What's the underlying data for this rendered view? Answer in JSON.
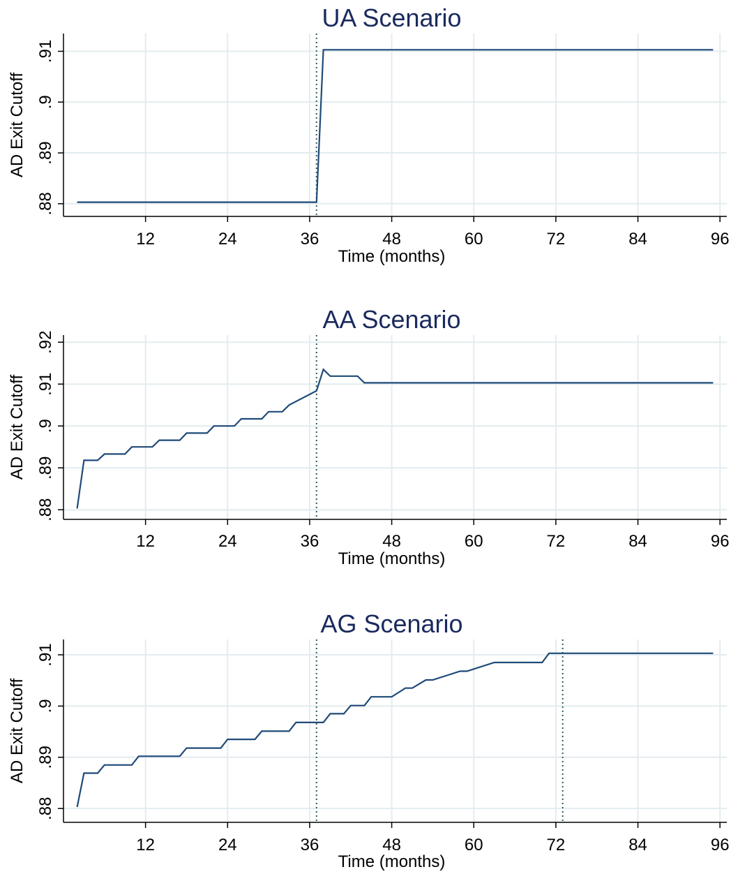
{
  "chart_data": [
    {
      "type": "line",
      "title": "UA Scenario",
      "xlabel": "Time (months)",
      "ylabel": "AD Exit Cutoff",
      "xticks": [
        12,
        24,
        36,
        48,
        60,
        72,
        84,
        96
      ],
      "xlim": [
        0,
        97
      ],
      "yticks": [
        0.88,
        0.89,
        0.9,
        0.91
      ],
      "ytick_labels": [
        ".88",
        ".89",
        ".9",
        ".91"
      ],
      "ylim": [
        0.8775,
        0.9135
      ],
      "grid": true,
      "reference_lines_x": [
        37
      ],
      "series": [
        {
          "x": [
            2,
            37,
            38,
            95
          ],
          "y": [
            0.8803,
            0.8803,
            0.9103,
            0.9103
          ]
        }
      ]
    },
    {
      "type": "line",
      "title": "AA Scenario",
      "xlabel": "Time (months)",
      "ylabel": "AD Exit Cutoff",
      "xticks": [
        12,
        24,
        36,
        48,
        60,
        72,
        84,
        96
      ],
      "xlim": [
        0,
        97
      ],
      "yticks": [
        0.88,
        0.89,
        0.9,
        0.91,
        0.92
      ],
      "ytick_labels": [
        ".88",
        ".89",
        ".9",
        ".91",
        ".92"
      ],
      "ylim": [
        0.8777,
        0.9217
      ],
      "grid": true,
      "reference_lines_x": [
        37
      ],
      "series": [
        {
          "x": [
            2,
            3,
            5,
            6,
            9,
            10,
            13,
            14,
            17,
            18,
            21,
            22,
            25,
            26,
            29,
            30,
            32,
            33,
            37,
            38,
            39,
            43,
            44,
            95
          ],
          "y": [
            0.8803,
            0.8918,
            0.8918,
            0.8933,
            0.8933,
            0.895,
            0.895,
            0.8966,
            0.8966,
            0.8983,
            0.8983,
            0.9,
            0.9,
            0.9017,
            0.9017,
            0.9034,
            0.9034,
            0.905,
            0.9084,
            0.9135,
            0.9119,
            0.9119,
            0.9103,
            0.9103
          ]
        }
      ]
    },
    {
      "type": "line",
      "title": "AG Scenario",
      "xlabel": "Time (months)",
      "ylabel": "AD Exit Cutoff",
      "xticks": [
        12,
        24,
        36,
        48,
        60,
        72,
        84,
        96
      ],
      "xlim": [
        0,
        97
      ],
      "yticks": [
        0.88,
        0.89,
        0.9,
        0.91
      ],
      "ytick_labels": [
        ".88",
        ".89",
        ".9",
        ".91"
      ],
      "ylim": [
        0.8773,
        0.913
      ],
      "grid": true,
      "reference_lines_x": [
        37,
        73
      ],
      "series": [
        {
          "x": [
            2,
            3,
            5,
            6,
            10,
            11,
            17,
            18,
            23,
            24,
            28,
            29,
            33,
            34,
            37,
            38,
            39,
            41,
            42,
            44,
            45,
            47,
            48,
            50,
            51,
            53,
            54,
            58,
            59,
            63,
            64,
            70,
            71,
            95
          ],
          "y": [
            0.8803,
            0.8869,
            0.8869,
            0.8885,
            0.8885,
            0.8902,
            0.8902,
            0.8918,
            0.8918,
            0.8935,
            0.8935,
            0.8951,
            0.8951,
            0.8968,
            0.8968,
            0.8968,
            0.8985,
            0.8985,
            0.9001,
            0.9001,
            0.9018,
            0.9018,
            0.9018,
            0.9035,
            0.9035,
            0.9051,
            0.9051,
            0.9068,
            0.9068,
            0.9085,
            0.9085,
            0.9085,
            0.9103,
            0.9103
          ]
        }
      ]
    }
  ]
}
